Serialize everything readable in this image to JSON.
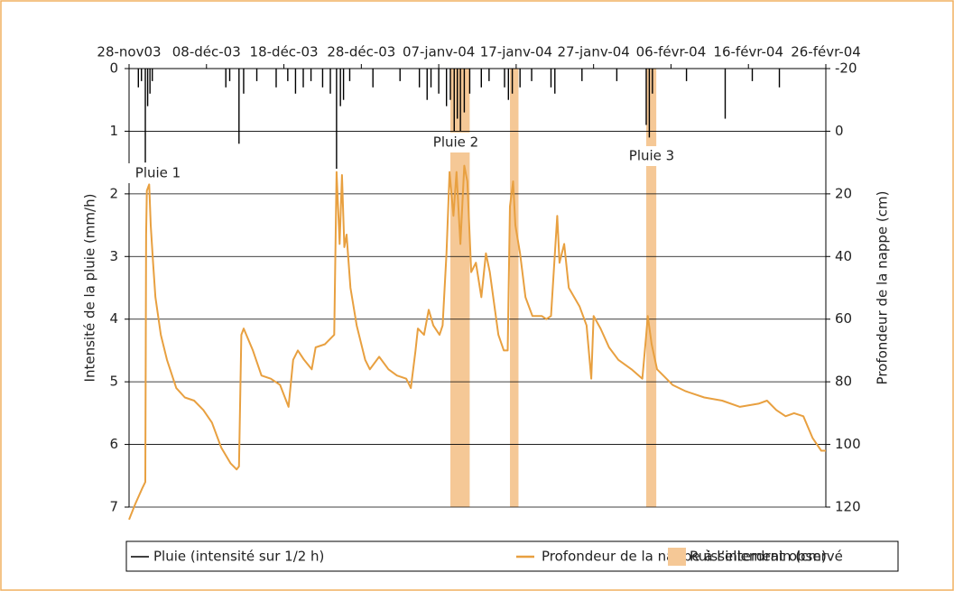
{
  "chart_data": {
    "type": "line",
    "ylabel": "Intensité de la pluie (mm/h)",
    "y2label": "Profondeur de la nappe (cm)",
    "xlim": [
      0,
      90
    ],
    "xticks": [
      {
        "value": 0,
        "label": "28-nov03"
      },
      {
        "value": 10,
        "label": "08-déc-03"
      },
      {
        "value": 20,
        "label": "18-déc-03"
      },
      {
        "value": 30,
        "label": "28-déc-03"
      },
      {
        "value": 40,
        "label": "07-janv-04"
      },
      {
        "value": 50,
        "label": "17-janv-04"
      },
      {
        "value": 60,
        "label": "27-janv-04"
      },
      {
        "value": 70,
        "label": "06-févr-04"
      },
      {
        "value": 80,
        "label": "16-févr-04"
      },
      {
        "value": 90,
        "label": "26-févr-04"
      }
    ],
    "ylim": [
      0,
      7
    ],
    "yticks": [
      0,
      1,
      2,
      3,
      4,
      5,
      6,
      7
    ],
    "y_inverted": true,
    "y2lim": [
      -20,
      120
    ],
    "y2ticks": [
      -20,
      0,
      20,
      40,
      60,
      80,
      100,
      120
    ],
    "y2_inverted": true,
    "grid": true,
    "annotations": [
      "Pluie 1",
      "Pluie 2",
      "Pluie 3"
    ],
    "series": [
      {
        "name": "Pluie (intensité sur 1/2 h)",
        "kind": "bar",
        "color": "#000000",
        "axis": "y",
        "x": [
          1.2,
          1.6,
          2.1,
          2.4,
          2.7,
          3.0,
          12.5,
          13.0,
          14.2,
          14.8,
          16.5,
          19.0,
          20.5,
          21.5,
          22.5,
          23.5,
          25.0,
          26.0,
          26.8,
          27.3,
          27.7,
          28.5,
          31.5,
          35.0,
          37.5,
          38.5,
          39.0,
          40.0,
          41.0,
          41.5,
          42.0,
          42.4,
          42.8,
          43.3,
          44.0,
          45.5,
          46.5,
          48.5,
          49.0,
          49.5,
          50.5,
          52.0,
          54.5,
          55.0,
          58.5,
          63.0,
          66.8,
          67.2,
          67.6,
          72.0,
          77.0,
          80.5,
          84.0
        ],
        "values": [
          0.3,
          0.2,
          1.5,
          0.6,
          0.4,
          0.2,
          0.3,
          0.2,
          1.2,
          0.4,
          0.2,
          0.3,
          0.2,
          0.4,
          0.3,
          0.2,
          0.3,
          0.4,
          1.6,
          0.6,
          0.5,
          0.2,
          0.3,
          0.2,
          0.3,
          0.5,
          0.3,
          0.4,
          0.6,
          0.5,
          1.0,
          0.8,
          1.0,
          0.7,
          0.4,
          0.3,
          0.2,
          0.3,
          0.5,
          0.4,
          0.3,
          0.2,
          0.3,
          0.4,
          0.2,
          0.2,
          0.9,
          1.1,
          0.4,
          0.2,
          0.8,
          0.2,
          0.3
        ]
      },
      {
        "name": "Profondeur de la nappe à l’interdrain (cm)",
        "kind": "line",
        "color": "#e8a040",
        "axis": "y2",
        "x": [
          0,
          0.8,
          1.7,
          2.1,
          2.2,
          2.3,
          2.6,
          2.8,
          3.1,
          3.4,
          4.1,
          4.9,
          6.1,
          7.2,
          8.4,
          9.6,
          10.7,
          11.9,
          13.1,
          13.9,
          14.2,
          14.5,
          14.8,
          16.0,
          17.1,
          18.3,
          19.5,
          20.6,
          21.2,
          21.8,
          22.6,
          23.6,
          24.1,
          25.3,
          26.5,
          26.8,
          27.2,
          27.5,
          27.8,
          28.1,
          28.6,
          29.4,
          30.5,
          31.1,
          32.3,
          33.5,
          34.6,
          35.8,
          36.4,
          37.0,
          37.3,
          38.1,
          38.7,
          39.3,
          40.1,
          40.5,
          41.0,
          41.4,
          41.9,
          42.3,
          42.8,
          43.3,
          43.7,
          44.2,
          44.8,
          45.5,
          46.1,
          46.6,
          47.2,
          47.7,
          48.4,
          48.9,
          49.2,
          49.6,
          49.9,
          50.5,
          51.2,
          52.1,
          53.3,
          53.9,
          54.5,
          55.0,
          55.3,
          55.6,
          56.2,
          56.8,
          57.5,
          58.2,
          59.1,
          59.7,
          60.0,
          60.9,
          62.0,
          63.2,
          64.9,
          66.3,
          66.8,
          67.0,
          67.5,
          68.2,
          69.0,
          70.2,
          71.9,
          74.3,
          76.6,
          78.9,
          81.3,
          82.4,
          83.6,
          84.8,
          85.9,
          87.1,
          88.3,
          89.4,
          90.0
        ],
        "values": [
          124,
          119,
          114,
          112,
          33,
          19,
          17,
          30,
          42,
          53,
          65,
          73,
          82,
          85,
          86,
          89,
          93,
          101,
          106,
          108,
          107,
          65,
          63,
          70,
          78,
          79,
          81,
          88,
          73,
          70,
          73,
          76,
          69,
          68,
          65,
          13,
          36,
          14,
          37,
          33,
          50,
          62,
          73,
          76,
          72,
          76,
          78,
          79,
          82,
          70,
          63,
          65,
          57,
          62,
          65,
          62,
          39,
          13,
          27,
          13,
          36,
          11,
          16,
          45,
          42,
          53,
          39,
          45,
          56,
          65,
          70,
          70,
          24,
          16,
          30,
          39,
          53,
          59,
          59,
          60,
          59,
          39,
          27,
          42,
          36,
          50,
          53,
          56,
          62,
          79,
          59,
          63,
          69,
          73,
          76,
          79,
          65,
          59,
          68,
          76,
          78,
          81,
          83,
          85,
          86,
          88,
          87,
          86,
          89,
          91,
          90,
          91,
          98,
          102,
          102
        ]
      },
      {
        "name": "Ruissellement observé",
        "kind": "span",
        "color": "#f5c896",
        "spans": [
          [
            41.5,
            44.0
          ],
          [
            49.2,
            50.3
          ],
          [
            66.8,
            68.1
          ]
        ]
      }
    ]
  }
}
